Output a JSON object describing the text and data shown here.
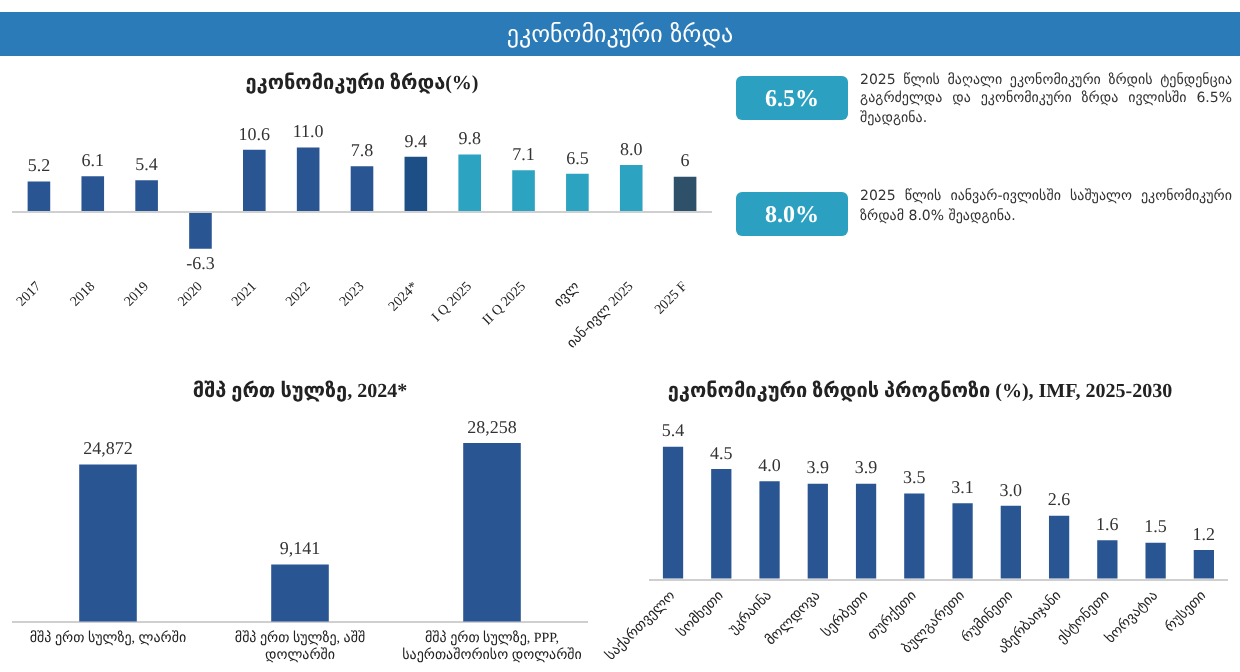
{
  "chart_data": [
    {
      "type": "other",
      "title": "ეკონომიკური ზრდა"
    },
    {
      "type": "bar",
      "title": "ეკონომიკური ზრდა(%)",
      "categories": [
        "2017",
        "2018",
        "2019",
        "2020",
        "2021",
        "2022",
        "2023",
        "2024*",
        "I Q 2025",
        "II Q 2025",
        "ივლ",
        "იან-ივლ 2025",
        "2025 F"
      ],
      "values": [
        5.2,
        6.1,
        5.4,
        -6.3,
        10.6,
        11.0,
        7.8,
        9.4,
        9.8,
        7.1,
        6.5,
        8.0,
        6
      ],
      "value_labels": [
        "5.2",
        "6.1",
        "5.4",
        "-6.3",
        "10.6",
        "11.0",
        "7.8",
        "9.4",
        "9.8",
        "7.1",
        "6.5",
        "8.0",
        "6"
      ],
      "colors": [
        "#2a5593",
        "#2a5593",
        "#2a5593",
        "#2a5593",
        "#2a5593",
        "#2a5593",
        "#2a5593",
        "#1d4f86",
        "#2ba3c1",
        "#2ba3c1",
        "#2ba3c1",
        "#2ba3c1",
        "#2e5068"
      ],
      "tick_labels": "x",
      "grid": false,
      "legend": false
    },
    {
      "type": "other",
      "annotations": [
        "6.5%",
        "2025 წლის მაღალი ეკონომიკური ზრდის ტენდენცია გაგრძელდა და ეკონომიკური ზრდა ივლისში 6.5% შეადგინა.",
        "8.0%",
        "2025 წლის იანვარ-ივლისში საშუალო ეკონომიკური ზრდამ 8.0% შეადგინა."
      ]
    },
    {
      "type": "bar",
      "title": "მშპ ერთ სულზე, 2024*",
      "categories": [
        "მშპ ერთ სულზე, ლარში",
        "მშპ ერთ სულზე, აშშ დოლარში",
        "მშპ ერთ სულზე, PPP, საერთაშორისო დოლარში"
      ],
      "values": [
        24872,
        9141,
        28258
      ],
      "value_labels": [
        "24,872",
        "9,141",
        "28,258"
      ],
      "color": "#2a5593",
      "tick_labels": "x",
      "grid": false,
      "legend": false
    },
    {
      "type": "bar",
      "title": "ეკონომიკური ზრდის პროგნოზი (%), IMF, 2025-2030",
      "categories": [
        "საქართველო",
        "სომხეთი",
        "უკრაინა",
        "მოლდოვა",
        "სერბეთი",
        "თურქეთი",
        "ბულგარეთი",
        "რუმინეთი",
        "აზერბაიჯანი",
        "ესტონეთი",
        "ხორვატია",
        "რუსეთი"
      ],
      "values": [
        5.4,
        4.5,
        4.0,
        3.9,
        3.9,
        3.5,
        3.1,
        3.0,
        2.6,
        1.6,
        1.5,
        1.2
      ],
      "value_labels": [
        "5.4",
        "4.5",
        "4.0",
        "3.9",
        "3.9",
        "3.5",
        "3.1",
        "3.0",
        "2.6",
        "1.6",
        "1.5",
        "1.2"
      ],
      "color": "#2a5593",
      "tick_labels": "x",
      "grid": false,
      "legend": false
    }
  ]
}
